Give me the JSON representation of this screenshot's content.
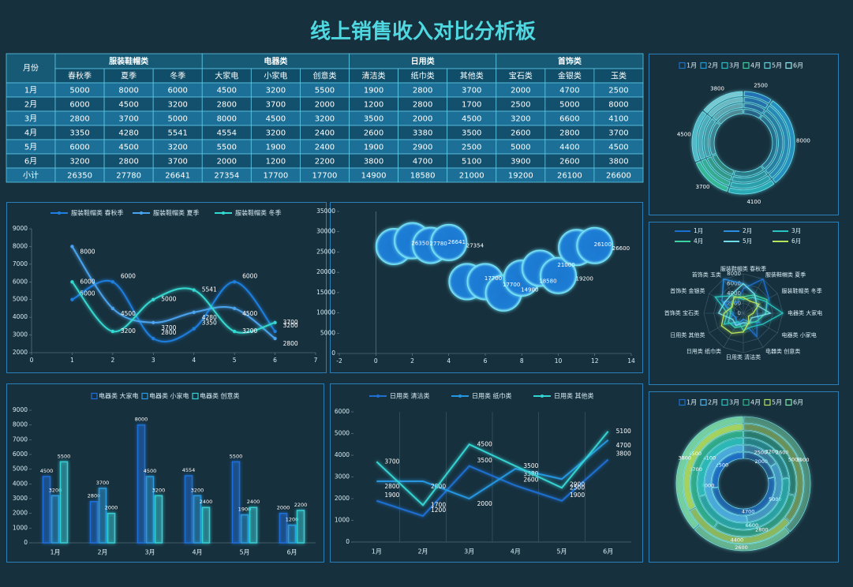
{
  "title": "线上销售收入对比分析板",
  "table": {
    "corner": "月份",
    "groups": [
      {
        "name": "服装鞋帽类",
        "columns": [
          "春秋季",
          "夏季",
          "冬季"
        ]
      },
      {
        "name": "电器类",
        "columns": [
          "大家电",
          "小家电",
          "创意类"
        ]
      },
      {
        "name": "日用类",
        "columns": [
          "清洁类",
          "纸巾类",
          "其他类"
        ]
      },
      {
        "name": "首饰类",
        "columns": [
          "宝石类",
          "金银类",
          "玉类"
        ]
      }
    ],
    "rows": [
      {
        "label": "1月",
        "values": [
          5000,
          8000,
          6000,
          4500,
          3200,
          5500,
          1900,
          2800,
          3700,
          2000,
          4700,
          2500
        ]
      },
      {
        "label": "2月",
        "values": [
          6000,
          4500,
          3200,
          2800,
          3700,
          2000,
          1200,
          2800,
          1700,
          2500,
          5000,
          8000
        ]
      },
      {
        "label": "3月",
        "values": [
          2800,
          3700,
          5000,
          8000,
          4500,
          3200,
          3500,
          2000,
          4500,
          3200,
          6600,
          4100
        ]
      },
      {
        "label": "4月",
        "values": [
          3350,
          4280,
          5541,
          4554,
          3200,
          2400,
          2600,
          3380,
          3500,
          2600,
          2800,
          3700
        ]
      },
      {
        "label": "5月",
        "values": [
          6000,
          4500,
          3200,
          5500,
          1900,
          2400,
          1900,
          2900,
          2500,
          5000,
          4400,
          4500
        ]
      },
      {
        "label": "6月",
        "values": [
          3200,
          2800,
          3700,
          2000,
          1200,
          2200,
          3800,
          4700,
          5100,
          3900,
          2600,
          3800
        ]
      },
      {
        "label": "小计",
        "values": [
          26350,
          27780,
          26641,
          27354,
          17700,
          17700,
          14900,
          18580,
          21000,
          19200,
          26100,
          26600
        ]
      }
    ]
  },
  "chart_data": [
    {
      "type": "line",
      "smooth": true,
      "legend": "top",
      "x": [
        1,
        2,
        3,
        4,
        5,
        6
      ],
      "xlim": [
        0,
        7
      ],
      "xticks": [
        0,
        1,
        2,
        3,
        4,
        5,
        6,
        7
      ],
      "ylim": [
        2000,
        9000
      ],
      "yticks": [
        2000,
        3000,
        4000,
        5000,
        6000,
        7000,
        8000,
        9000
      ],
      "series": [
        {
          "name": "服装鞋帽类 春秋季",
          "color": "#1e7fe0",
          "values": [
            5000,
            6000,
            2800,
            3350,
            6000,
            3200
          ]
        },
        {
          "name": "服装鞋帽类 夏季",
          "color": "#4aa3ee",
          "values": [
            8000,
            4500,
            3700,
            4280,
            4500,
            2800
          ]
        },
        {
          "name": "服装鞋帽类 冬季",
          "color": "#35d8d0",
          "values": [
            6000,
            3200,
            5000,
            5541,
            3200,
            3700
          ]
        }
      ]
    },
    {
      "type": "bubble",
      "color": "#1e7fd8",
      "x": [
        1,
        2,
        3,
        4,
        5,
        6,
        7,
        8,
        9,
        10,
        11,
        12
      ],
      "values": [
        26350,
        27780,
        26641,
        27354,
        17700,
        17700,
        14900,
        18580,
        21000,
        19200,
        26100,
        26600
      ],
      "xlim": [
        -2,
        14
      ],
      "xticks": [
        -2,
        0,
        2,
        4,
        6,
        8,
        10,
        12,
        14
      ],
      "ylim": [
        0,
        35000
      ],
      "yticks": [
        0,
        5000,
        10000,
        15000,
        20000,
        25000,
        30000,
        35000
      ]
    },
    {
      "type": "doughnut",
      "legend": "top",
      "categories": [
        "1月",
        "2月",
        "3月",
        "4月",
        "5月",
        "6月"
      ],
      "values": [
        2500,
        8000,
        4100,
        3700,
        4500,
        3800
      ],
      "colors": [
        "#1a73c8",
        "#1f9bd6",
        "#25c0c8",
        "#3ad29f",
        "#5fd3e0",
        "#8fe6ee"
      ]
    },
    {
      "type": "radar",
      "legend": "top",
      "categories": [
        "服装鞋帽类 春秋季",
        "服装鞋帽类 夏季",
        "服装鞋帽类 冬季",
        "电器类 大家电",
        "电器类 小家电",
        "电器类 创意类",
        "日用类 清洁类",
        "日用类 纸巾类",
        "日用类 其他类",
        "首饰类 宝石类",
        "首饰类 金银类",
        "首饰类 玉类"
      ],
      "rlim": [
        0,
        8000
      ],
      "rticks": [
        0,
        2000,
        4000,
        6000,
        8000
      ],
      "series": [
        {
          "name": "1月",
          "color": "#1a6fd0",
          "values": [
            5000,
            8000,
            6000,
            4500,
            3200,
            5500,
            1900,
            2800,
            3700,
            2000,
            4700,
            2500
          ]
        },
        {
          "name": "2月",
          "color": "#2a8fe0",
          "values": [
            6000,
            4500,
            3200,
            2800,
            3700,
            2000,
            1200,
            2800,
            1700,
            2500,
            5000,
            8000
          ]
        },
        {
          "name": "3月",
          "color": "#28c4c0",
          "values": [
            2800,
            3700,
            5000,
            8000,
            4500,
            3200,
            3500,
            2000,
            4500,
            3200,
            6600,
            4100
          ]
        },
        {
          "name": "4月",
          "color": "#3ad29f",
          "values": [
            3350,
            4280,
            5541,
            4554,
            3200,
            2400,
            2600,
            3380,
            3500,
            2600,
            2800,
            3700
          ]
        },
        {
          "name": "5月",
          "color": "#6fdde8",
          "values": [
            6000,
            4500,
            3200,
            5500,
            1900,
            2400,
            1900,
            2900,
            2500,
            5000,
            4400,
            4500
          ]
        },
        {
          "name": "6月",
          "color": "#b6e35a",
          "values": [
            3200,
            2800,
            3700,
            2000,
            1200,
            2200,
            3800,
            4700,
            5100,
            3900,
            2600,
            3800
          ]
        }
      ]
    },
    {
      "type": "bar",
      "legend": "top",
      "categories": [
        "1月",
        "2月",
        "3月",
        "4月",
        "5月",
        "6月"
      ],
      "ylim": [
        0,
        9000
      ],
      "yticks": [
        0,
        1000,
        2000,
        3000,
        4000,
        5000,
        6000,
        7000,
        8000,
        9000
      ],
      "series": [
        {
          "name": "电器类 大家电",
          "color": "#1e6fd9",
          "values": [
            4500,
            2800,
            8000,
            4554,
            5500,
            2000
          ]
        },
        {
          "name": "电器类 小家电",
          "color": "#2a9be0",
          "values": [
            3200,
            3700,
            4500,
            3200,
            1900,
            1200
          ]
        },
        {
          "name": "电器类 创意类",
          "color": "#36d0d6",
          "values": [
            5500,
            2000,
            3200,
            2400,
            2400,
            2200
          ]
        }
      ]
    },
    {
      "type": "line",
      "smooth": false,
      "legend": "top",
      "xgrid": true,
      "categories": [
        "1月",
        "2月",
        "3月",
        "4月",
        "5月",
        "6月"
      ],
      "ylim": [
        0,
        6000
      ],
      "yticks": [
        0,
        1000,
        2000,
        3000,
        4000,
        5000,
        6000
      ],
      "series": [
        {
          "name": "日用类 清洁类",
          "color": "#1f6fd1",
          "values": [
            1900,
            1200,
            3500,
            2600,
            1900,
            3800
          ]
        },
        {
          "name": "日用类 纸巾类",
          "color": "#2596e0",
          "values": [
            2800,
            2800,
            2000,
            3380,
            2900,
            4700
          ]
        },
        {
          "name": "日用类 其他类",
          "color": "#35d3d3",
          "values": [
            3700,
            1700,
            4500,
            3500,
            2500,
            5100
          ]
        }
      ]
    },
    {
      "type": "multi_doughnut",
      "legend": "top",
      "series": [
        {
          "name": "1月",
          "color": "#1a6fd0",
          "values": [
            2000,
            4700,
            2500
          ]
        },
        {
          "name": "2月",
          "color": "#4fb3ea",
          "values": [
            2500,
            5000,
            8000
          ]
        },
        {
          "name": "3月",
          "color": "#28c4c0",
          "values": [
            3200,
            6600,
            4100
          ]
        },
        {
          "name": "4月",
          "color": "#2fb58f",
          "values": [
            2600,
            2800,
            3700
          ]
        },
        {
          "name": "5月",
          "color": "#b6e35a",
          "values": [
            5000,
            4400,
            4500
          ]
        },
        {
          "name": "6月",
          "color": "#7fe0a8",
          "values": [
            3900,
            2600,
            3800
          ]
        }
      ]
    }
  ]
}
